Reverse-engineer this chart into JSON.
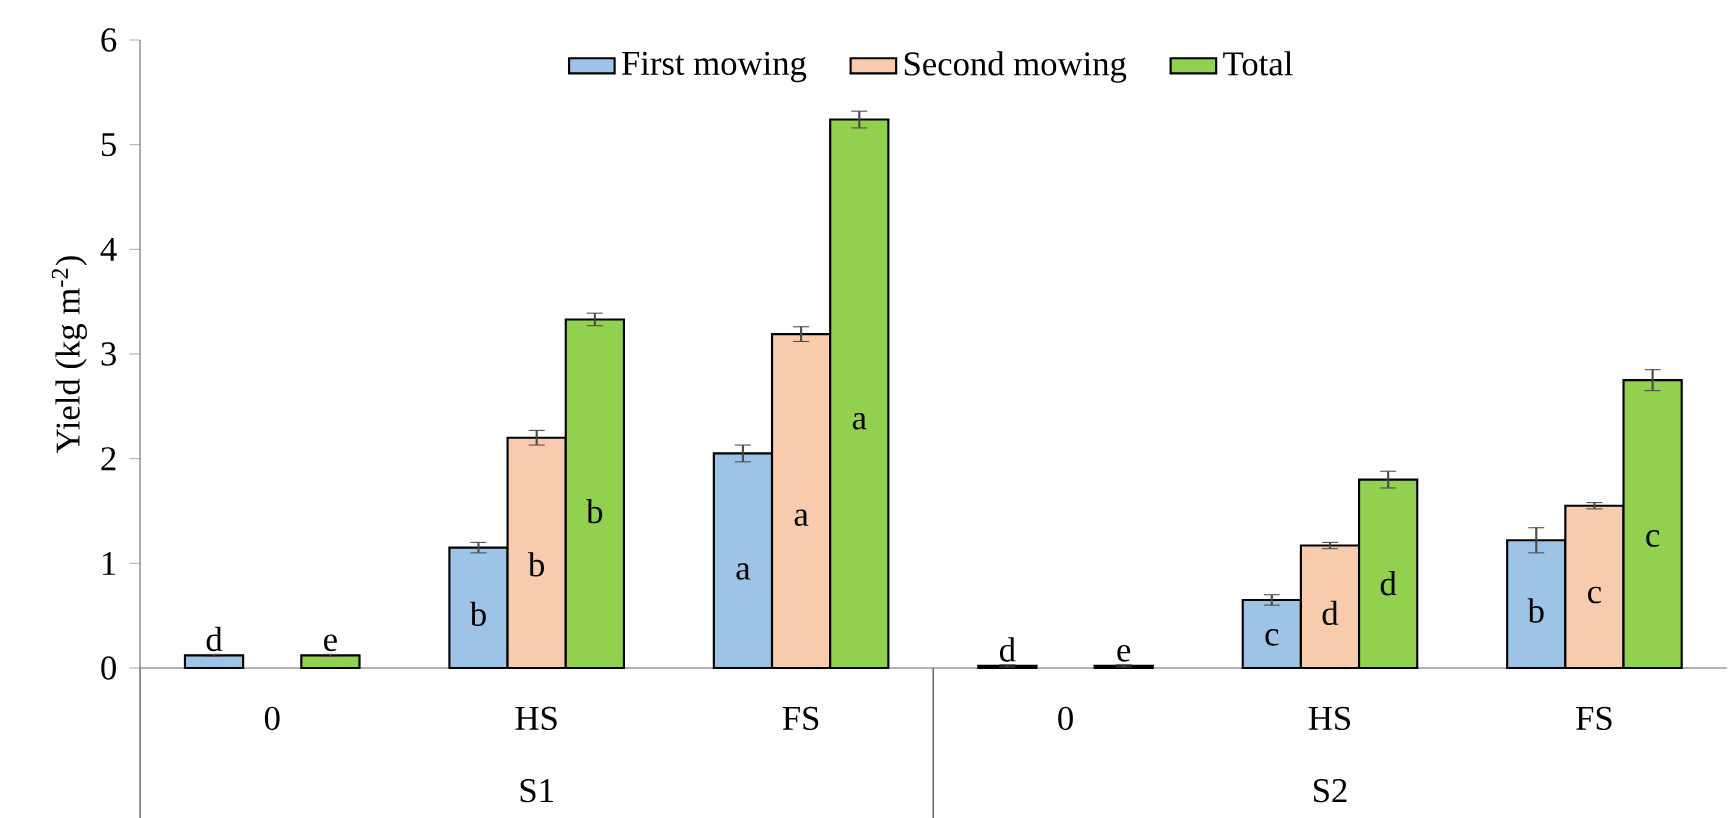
{
  "chart_data": {
    "type": "bar",
    "ylabel": "Yield (kg m$^{-2}$)",
    "categories": [
      "0",
      "HS",
      "FS",
      "0",
      "HS",
      "FS"
    ],
    "annotations": [
      "S1",
      "S2"
    ],
    "ylim": [
      0,
      6
    ],
    "yticks": [
      0,
      1,
      2,
      3,
      4,
      5,
      6
    ],
    "legend": "top",
    "series": [
      {
        "name": "First mowing",
        "color": "#9dc3e6",
        "values": [
          0.12,
          1.15,
          2.05,
          0.02,
          0.65,
          1.22
        ],
        "errors": [
          0.01,
          0.05,
          0.08,
          0.01,
          0.05,
          0.12
        ],
        "value_labels": [
          "d",
          "b",
          "a",
          "d",
          "c",
          "b"
        ]
      },
      {
        "name": "Second mowing",
        "color": "#f8cbad",
        "values": [
          null,
          2.2,
          3.19,
          null,
          1.17,
          1.55
        ],
        "errors": [
          null,
          0.07,
          0.07,
          null,
          0.03,
          0.03
        ],
        "value_labels": [
          null,
          "b",
          "a",
          null,
          "d",
          "c"
        ]
      },
      {
        "name": "Total",
        "color": "#92d050",
        "values": [
          0.12,
          3.33,
          5.24,
          0.02,
          1.8,
          2.75
        ],
        "errors": [
          0.01,
          0.06,
          0.08,
          0.01,
          0.08,
          0.1
        ],
        "value_labels": [
          "e",
          "b",
          "a",
          "e",
          "d",
          "c"
        ]
      }
    ]
  }
}
